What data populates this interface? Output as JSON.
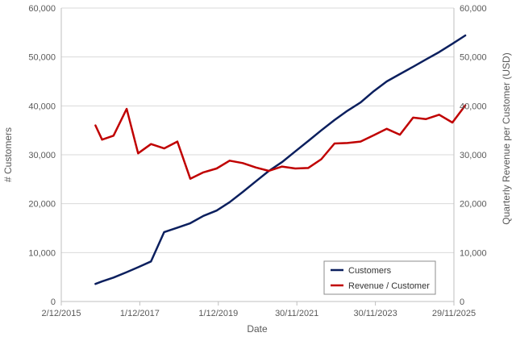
{
  "chart_data": {
    "type": "line",
    "xlabel": "Date",
    "ylabel_left": "# Customers",
    "ylabel_right": "Quarterly Revenue per Customer (USD)",
    "x_axis": {
      "min": "2015-12-02",
      "max": "2025-11-29",
      "ticks": [
        "2015-12-02",
        "2017-12-01",
        "2019-12-01",
        "2021-11-30",
        "2023-11-30",
        "2025-11-29"
      ],
      "tick_labels": [
        "2/12/2015",
        "1/12/2017",
        "1/12/2019",
        "30/11/2021",
        "30/11/2023",
        "29/11/2025"
      ]
    },
    "y_left": {
      "min": 0,
      "max": 60000,
      "ticks": [
        0,
        10000,
        20000,
        30000,
        40000,
        50000,
        60000
      ],
      "tick_labels": [
        "0",
        "10,000",
        "20,000",
        "30,000",
        "40,000",
        "50,000",
        "60,000"
      ]
    },
    "y_right": {
      "min": 0,
      "max": 60000,
      "ticks": [
        0,
        10000,
        20000,
        30000,
        40000,
        50000,
        60000
      ],
      "tick_labels": [
        "0",
        "10,000",
        "20,000",
        "30,000",
        "40,000",
        "50,000",
        "60,000"
      ]
    },
    "grid": "horizontal",
    "legend_position": "bottom-right",
    "series": [
      {
        "name": "Customers",
        "axis": "left",
        "color": "#0b1f5e",
        "points": [
          {
            "x": "2016-10-15",
            "y": 3600
          },
          {
            "x": "2016-12-15",
            "y": 4100
          },
          {
            "x": "2017-04-01",
            "y": 4900
          },
          {
            "x": "2017-08-01",
            "y": 6000
          },
          {
            "x": "2017-11-15",
            "y": 7000
          },
          {
            "x": "2018-03-15",
            "y": 8200
          },
          {
            "x": "2018-07-15",
            "y": 14200
          },
          {
            "x": "2018-11-15",
            "y": 15100
          },
          {
            "x": "2019-03-15",
            "y": 16000
          },
          {
            "x": "2019-07-15",
            "y": 17500
          },
          {
            "x": "2019-11-15",
            "y": 18600
          },
          {
            "x": "2020-03-15",
            "y": 20300
          },
          {
            "x": "2020-07-15",
            "y": 22400
          },
          {
            "x": "2020-11-15",
            "y": 24600
          },
          {
            "x": "2021-03-15",
            "y": 26700
          },
          {
            "x": "2021-07-15",
            "y": 28500
          },
          {
            "x": "2021-11-15",
            "y": 30700
          },
          {
            "x": "2022-03-15",
            "y": 32800
          },
          {
            "x": "2022-07-15",
            "y": 35000
          },
          {
            "x": "2022-11-15",
            "y": 37100
          },
          {
            "x": "2023-03-15",
            "y": 39000
          },
          {
            "x": "2023-07-15",
            "y": 40700
          },
          {
            "x": "2023-11-15",
            "y": 43000
          },
          {
            "x": "2024-03-15",
            "y": 45000
          },
          {
            "x": "2024-07-15",
            "y": 46500
          },
          {
            "x": "2024-11-15",
            "y": 48000
          },
          {
            "x": "2025-03-15",
            "y": 49500
          },
          {
            "x": "2025-07-15",
            "y": 51000
          },
          {
            "x": "2025-11-15",
            "y": 52700
          },
          {
            "x": "2026-03-15",
            "y": 54400
          }
        ]
      },
      {
        "name": "Revenue / Customer",
        "axis": "right",
        "color": "#c00000",
        "points": [
          {
            "x": "2016-10-15",
            "y": 36000
          },
          {
            "x": "2016-12-15",
            "y": 33100
          },
          {
            "x": "2017-04-01",
            "y": 33900
          },
          {
            "x": "2017-08-01",
            "y": 39400
          },
          {
            "x": "2017-11-15",
            "y": 30300
          },
          {
            "x": "2018-03-15",
            "y": 32200
          },
          {
            "x": "2018-07-15",
            "y": 31300
          },
          {
            "x": "2018-11-15",
            "y": 32700
          },
          {
            "x": "2019-03-15",
            "y": 25100
          },
          {
            "x": "2019-07-15",
            "y": 26400
          },
          {
            "x": "2019-11-15",
            "y": 27200
          },
          {
            "x": "2020-03-15",
            "y": 28800
          },
          {
            "x": "2020-07-15",
            "y": 28300
          },
          {
            "x": "2020-11-15",
            "y": 27400
          },
          {
            "x": "2021-03-15",
            "y": 26700
          },
          {
            "x": "2021-07-15",
            "y": 27600
          },
          {
            "x": "2021-11-15",
            "y": 27200
          },
          {
            "x": "2022-03-15",
            "y": 27300
          },
          {
            "x": "2022-07-15",
            "y": 29100
          },
          {
            "x": "2022-11-15",
            "y": 32300
          },
          {
            "x": "2023-03-15",
            "y": 32400
          },
          {
            "x": "2023-07-15",
            "y": 32700
          },
          {
            "x": "2023-11-15",
            "y": 34000
          },
          {
            "x": "2024-03-15",
            "y": 35300
          },
          {
            "x": "2024-07-15",
            "y": 34100
          },
          {
            "x": "2024-11-15",
            "y": 37600
          },
          {
            "x": "2025-03-15",
            "y": 37300
          },
          {
            "x": "2025-07-15",
            "y": 38200
          },
          {
            "x": "2025-11-15",
            "y": 36600
          },
          {
            "x": "2026-03-15",
            "y": 40100
          }
        ]
      }
    ]
  }
}
